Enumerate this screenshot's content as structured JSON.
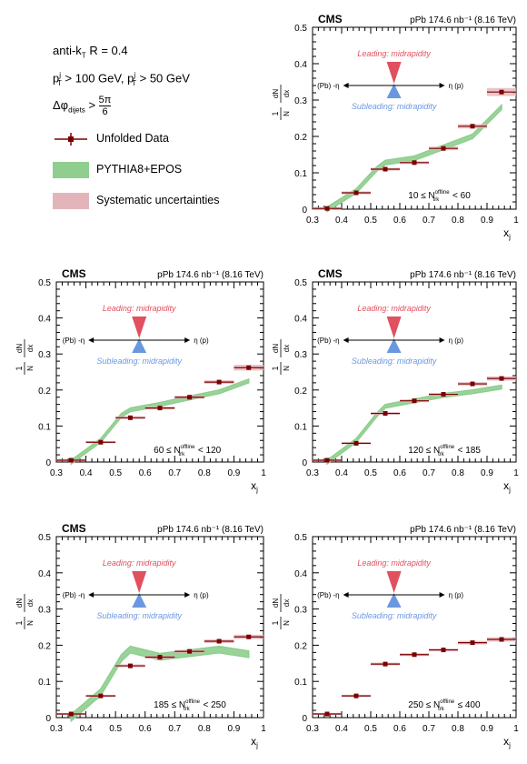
{
  "header": {
    "algo": "anti-k",
    "algo_sub": "T",
    "algo_rest": "R = 0.4",
    "lead_cut": "p",
    "lead_cut_sup": "j",
    "lead_cut_sub": "T",
    "lead_cut_val": "> 100 GeV,",
    "sub_cut": "p",
    "sub_cut_sup": "j",
    "sub_cut_sub": "T",
    "sub_cut_val": "> 50 GeV",
    "dphi": "Δφ",
    "dphi_sub": "dijets",
    "dphi_num": "5π",
    "dphi_den": "6"
  },
  "legend": [
    {
      "label": "Unfolded Data",
      "kind": "data"
    },
    {
      "label": "PYTHIA8+EPOS",
      "kind": "model"
    },
    {
      "label": "Systematic uncertainties",
      "kind": "syst"
    }
  ],
  "colors": {
    "data": "#7a0000",
    "model": "#8fce8f",
    "syst": "#e3b5bb",
    "leading": "#e0505f",
    "subleading": "#6a98e0"
  },
  "chart_data": [
    {
      "type": "scatter",
      "experiment": "CMS",
      "lumi": "pPb 174.6 nb⁻¹ (8.16 TeV)",
      "xlabel": "x",
      "xlabel_sub": "j",
      "ylabel": "1/N_dijet dN_dijet/dx_j",
      "xlim": [
        0.3,
        1.0
      ],
      "ylim": [
        0,
        0.5
      ],
      "xticks": [
        "0.3",
        "0.4",
        "0.5",
        "0.6",
        "0.7",
        "0.8",
        "0.9",
        "1"
      ],
      "yticks": [
        "0",
        "0.1",
        "0.2",
        "0.3",
        "0.4",
        "0.5"
      ],
      "mult_label": "10 ≤ N",
      "mult_label_sup": "offline",
      "mult_label_sub": "trk",
      "mult_label_rest": "< 60",
      "leading_text": "Leading: midrapidity",
      "subleading_text": "Subleading: midrapidity",
      "pb_text": "(Pb) -η",
      "p_text": "η (p)",
      "x": [
        0.35,
        0.45,
        0.55,
        0.65,
        0.75,
        0.85,
        0.95
      ],
      "y": [
        0.002,
        0.045,
        0.11,
        0.128,
        0.167,
        0.228,
        0.322
      ],
      "syst": [
        0.004,
        0.004,
        0.004,
        0.004,
        0.005,
        0.006,
        0.011
      ],
      "model_x": [
        0.35,
        0.45,
        0.52,
        0.55,
        0.65,
        0.75,
        0.85,
        0.95
      ],
      "model_y": [
        0.0,
        0.05,
        0.11,
        0.128,
        0.14,
        0.17,
        0.2,
        0.28
      ],
      "model_band": 0.006
    },
    {
      "type": "scatter",
      "experiment": "CMS",
      "lumi": "pPb 174.6 nb⁻¹ (8.16 TeV)",
      "xlabel": "x",
      "xlabel_sub": "j",
      "ylabel": "1/N_dijet dN_dijet/dx_j",
      "xlim": [
        0.3,
        1.0
      ],
      "ylim": [
        0,
        0.5
      ],
      "xticks": [
        "0.3",
        "0.4",
        "0.5",
        "0.6",
        "0.7",
        "0.8",
        "0.9",
        "1"
      ],
      "yticks": [
        "0",
        "0.1",
        "0.2",
        "0.3",
        "0.4",
        "0.5"
      ],
      "mult_label": "60 ≤ N",
      "mult_label_sup": "offline",
      "mult_label_sub": "trk",
      "mult_label_rest": "< 120",
      "leading_text": "Leading: midrapidity",
      "subleading_text": "Subleading: midrapidity",
      "pb_text": "(Pb) -η",
      "p_text": "η (p)",
      "x": [
        0.35,
        0.45,
        0.55,
        0.65,
        0.75,
        0.85,
        0.95
      ],
      "y": [
        0.005,
        0.055,
        0.123,
        0.15,
        0.18,
        0.222,
        0.262
      ],
      "syst": [
        0.003,
        0.003,
        0.004,
        0.004,
        0.004,
        0.005,
        0.008
      ],
      "model_x": [
        0.35,
        0.45,
        0.52,
        0.55,
        0.65,
        0.75,
        0.85,
        0.95
      ],
      "model_y": [
        0.0,
        0.06,
        0.13,
        0.145,
        0.16,
        0.178,
        0.195,
        0.225
      ],
      "model_band": 0.005
    },
    {
      "type": "scatter",
      "experiment": "CMS",
      "lumi": "pPb 174.6 nb⁻¹ (8.16 TeV)",
      "xlabel": "x",
      "xlabel_sub": "j",
      "ylabel": "1/N_dijet dN_dijet/dx_j",
      "xlim": [
        0.3,
        1.0
      ],
      "ylim": [
        0,
        0.5
      ],
      "xticks": [
        "0.3",
        "0.4",
        "0.5",
        "0.6",
        "0.7",
        "0.8",
        "0.9",
        "1"
      ],
      "yticks": [
        "0",
        "0.1",
        "0.2",
        "0.3",
        "0.4",
        "0.5"
      ],
      "mult_label": "120 ≤ N",
      "mult_label_sup": "offline",
      "mult_label_sub": "trk",
      "mult_label_rest": "< 185",
      "leading_text": "Leading: midrapidity",
      "subleading_text": "Subleading: midrapidity",
      "pb_text": "(Pb) -η",
      "p_text": "η (p)",
      "x": [
        0.35,
        0.45,
        0.55,
        0.65,
        0.75,
        0.85,
        0.95
      ],
      "y": [
        0.005,
        0.052,
        0.135,
        0.17,
        0.188,
        0.217,
        0.232
      ],
      "syst": [
        0.003,
        0.003,
        0.004,
        0.004,
        0.004,
        0.005,
        0.006
      ],
      "model_x": [
        0.35,
        0.45,
        0.52,
        0.55,
        0.65,
        0.75,
        0.85,
        0.95
      ],
      "model_y": [
        0.0,
        0.06,
        0.13,
        0.155,
        0.17,
        0.185,
        0.195,
        0.208
      ],
      "model_band": 0.005
    },
    {
      "type": "scatter",
      "experiment": "CMS",
      "lumi": "pPb 174.6 nb⁻¹ (8.16 TeV)",
      "xlabel": "x",
      "xlabel_sub": "j",
      "ylabel": "1/N_dijet dN_dijet/dx_j",
      "xlim": [
        0.3,
        1.0
      ],
      "ylim": [
        0,
        0.5
      ],
      "xticks": [
        "0.3",
        "0.4",
        "0.5",
        "0.6",
        "0.7",
        "0.8",
        "0.9",
        "1"
      ],
      "yticks": [
        "0",
        "0.1",
        "0.2",
        "0.3",
        "0.4",
        "0.5"
      ],
      "mult_label": "185 ≤ N",
      "mult_label_sup": "offline",
      "mult_label_sub": "trk",
      "mult_label_rest": "< 250",
      "leading_text": "Leading: midrapidity",
      "subleading_text": "Subleading: midrapidity",
      "pb_text": "(Pb) -η",
      "p_text": "η (p)",
      "x": [
        0.35,
        0.45,
        0.55,
        0.65,
        0.75,
        0.85,
        0.95
      ],
      "y": [
        0.01,
        0.06,
        0.143,
        0.167,
        0.183,
        0.211,
        0.223
      ],
      "syst": [
        0.003,
        0.003,
        0.004,
        0.004,
        0.004,
        0.005,
        0.006
      ],
      "model_x": [
        0.35,
        0.45,
        0.52,
        0.55,
        0.65,
        0.75,
        0.85,
        0.95
      ],
      "model_y": [
        0.0,
        0.07,
        0.165,
        0.188,
        0.168,
        0.178,
        0.188,
        0.175
      ],
      "model_band": 0.009
    },
    {
      "type": "scatter",
      "experiment": "",
      "lumi": "pPb 174.6 nb⁻¹ (8.16 TeV)",
      "xlabel": "x",
      "xlabel_sub": "j",
      "ylabel": "1/N_dijet dN_dijet/dx_j",
      "xlim": [
        0.3,
        1.0
      ],
      "ylim": [
        0,
        0.5
      ],
      "xticks": [
        "0.3",
        "0.4",
        "0.5",
        "0.6",
        "0.7",
        "0.8",
        "0.9",
        "1"
      ],
      "yticks": [
        "0",
        "0.1",
        "0.2",
        "0.3",
        "0.4",
        "0.5"
      ],
      "mult_label": "250 ≤ N",
      "mult_label_sup": "offline",
      "mult_label_sub": "trk",
      "mult_label_rest": "≤ 400",
      "leading_text": "Leading: midrapidity",
      "subleading_text": "Subleading: midrapidity",
      "pb_text": "(Pb) -η",
      "p_text": "η (p)",
      "x": [
        0.35,
        0.45,
        0.55,
        0.65,
        0.75,
        0.85,
        0.95
      ],
      "y": [
        0.01,
        0.06,
        0.148,
        0.174,
        0.187,
        0.207,
        0.216
      ],
      "syst": [
        0.003,
        0.003,
        0.004,
        0.004,
        0.004,
        0.005,
        0.006
      ],
      "model_x": [],
      "model_y": [],
      "model_band": 0
    }
  ]
}
